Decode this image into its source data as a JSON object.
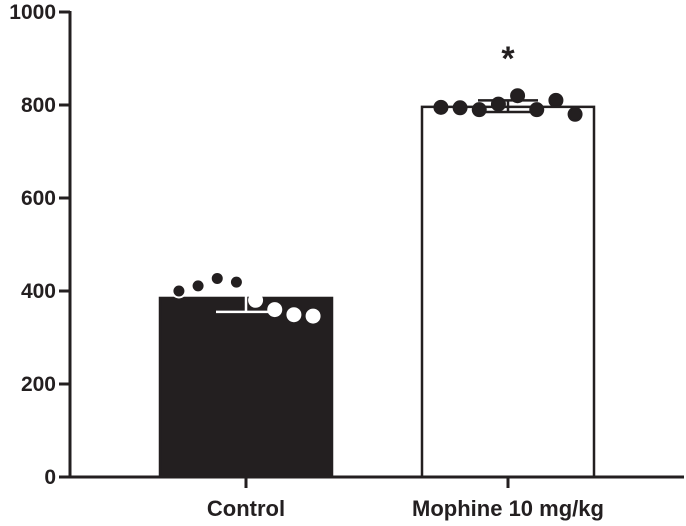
{
  "chart_data": {
    "type": "bar",
    "categories": [
      "Control",
      "Mophine 10 mg/kg"
    ],
    "values": [
      385,
      796
    ],
    "error": [
      {
        "low": 355,
        "high": 415
      },
      {
        "low": 785,
        "high": 810
      }
    ],
    "points": [
      [
        {
          "y": 400,
          "filled": false
        },
        {
          "y": 411,
          "filled": false
        },
        {
          "y": 427,
          "filled": false
        },
        {
          "y": 419,
          "filled": false
        },
        {
          "y": 380,
          "filled": true
        },
        {
          "y": 360,
          "filled": true
        },
        {
          "y": 349,
          "filled": true
        },
        {
          "y": 346,
          "filled": true
        }
      ],
      [
        {
          "y": 795,
          "filled": true
        },
        {
          "y": 794,
          "filled": true
        },
        {
          "y": 790,
          "filled": true
        },
        {
          "y": 802,
          "filled": true
        },
        {
          "y": 820,
          "filled": true
        },
        {
          "y": 790,
          "filled": true
        },
        {
          "y": 810,
          "filled": true
        },
        {
          "y": 780,
          "filled": true
        }
      ]
    ],
    "bar_colors": [
      "#231f20",
      "#ffffff"
    ],
    "bar_outline": "#231f20",
    "point_color": "#231f20",
    "annotations": [
      {
        "category_index": 1,
        "text": "*"
      }
    ],
    "yticks": [
      "0",
      "200",
      "400",
      "600",
      "800",
      "1000"
    ],
    "ylim": [
      0,
      1000
    ],
    "title": "",
    "xlabel": "",
    "ylabel": "",
    "grid": false
  }
}
